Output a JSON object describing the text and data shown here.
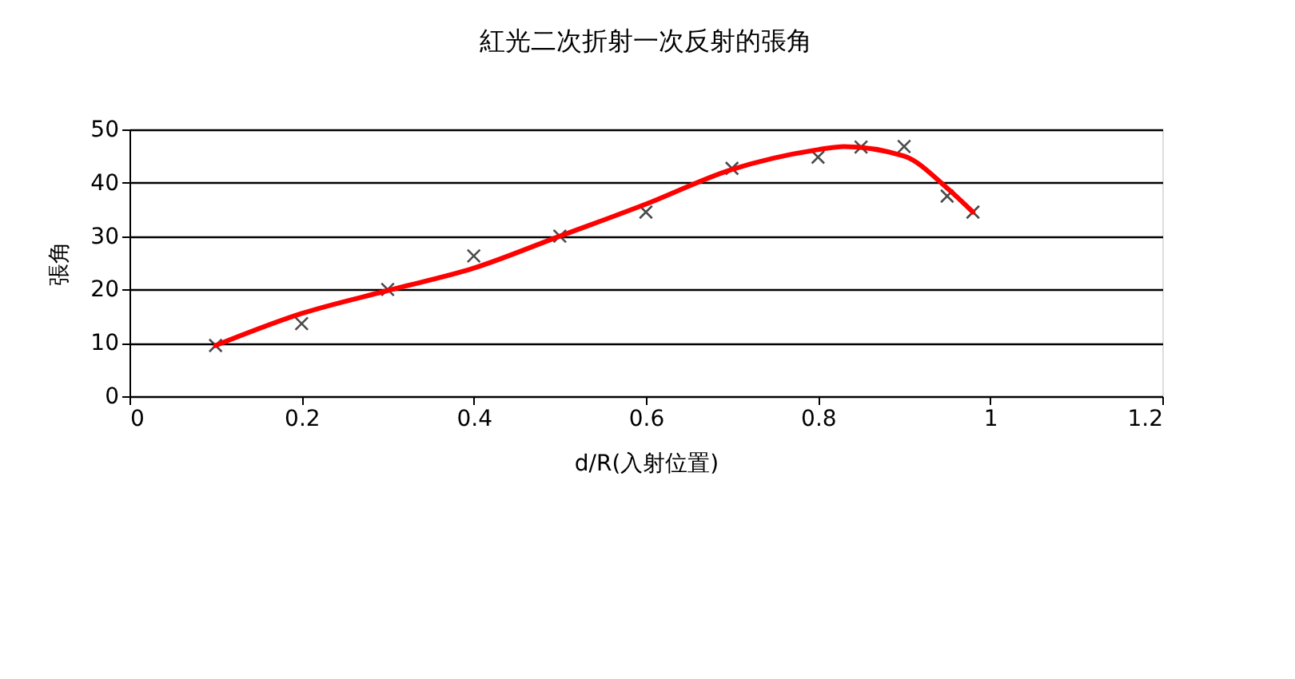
{
  "chart_data": {
    "type": "scatter",
    "title": "紅光二次折射一次反射的張角",
    "xlabel": "d/R(入射位置)",
    "ylabel": "張角",
    "xlim": [
      0,
      1.2
    ],
    "xticks": [
      0,
      0.2,
      0.4,
      0.6,
      0.8,
      1,
      1.2
    ],
    "ylim": [
      0,
      50
    ],
    "yticks": [
      0,
      10,
      20,
      30,
      40,
      50
    ],
    "grid": "y",
    "series": [
      {
        "type": "scatter",
        "marker": "cross",
        "color": "#000000",
        "x": [
          0.1,
          0.2,
          0.3,
          0.4,
          0.5,
          0.6,
          0.7,
          0.8,
          0.85,
          0.9,
          0.95,
          0.98
        ],
        "values": [
          9.5,
          13.6,
          20,
          26.3,
          30,
          34.5,
          42.7,
          44.8,
          46.7,
          46.8,
          37.5,
          34.5
        ]
      },
      {
        "type": "line",
        "marker": "none",
        "line_style": "solid",
        "color": "#ff0000",
        "x": [
          0.1,
          0.2,
          0.3,
          0.4,
          0.5,
          0.6,
          0.7,
          0.8,
          0.83,
          0.9,
          0.95,
          0.98
        ],
        "values": [
          9.5,
          15.5,
          19.8,
          24,
          30,
          36,
          42.5,
          46.2,
          46.8,
          45,
          39,
          34.5
        ]
      }
    ]
  }
}
